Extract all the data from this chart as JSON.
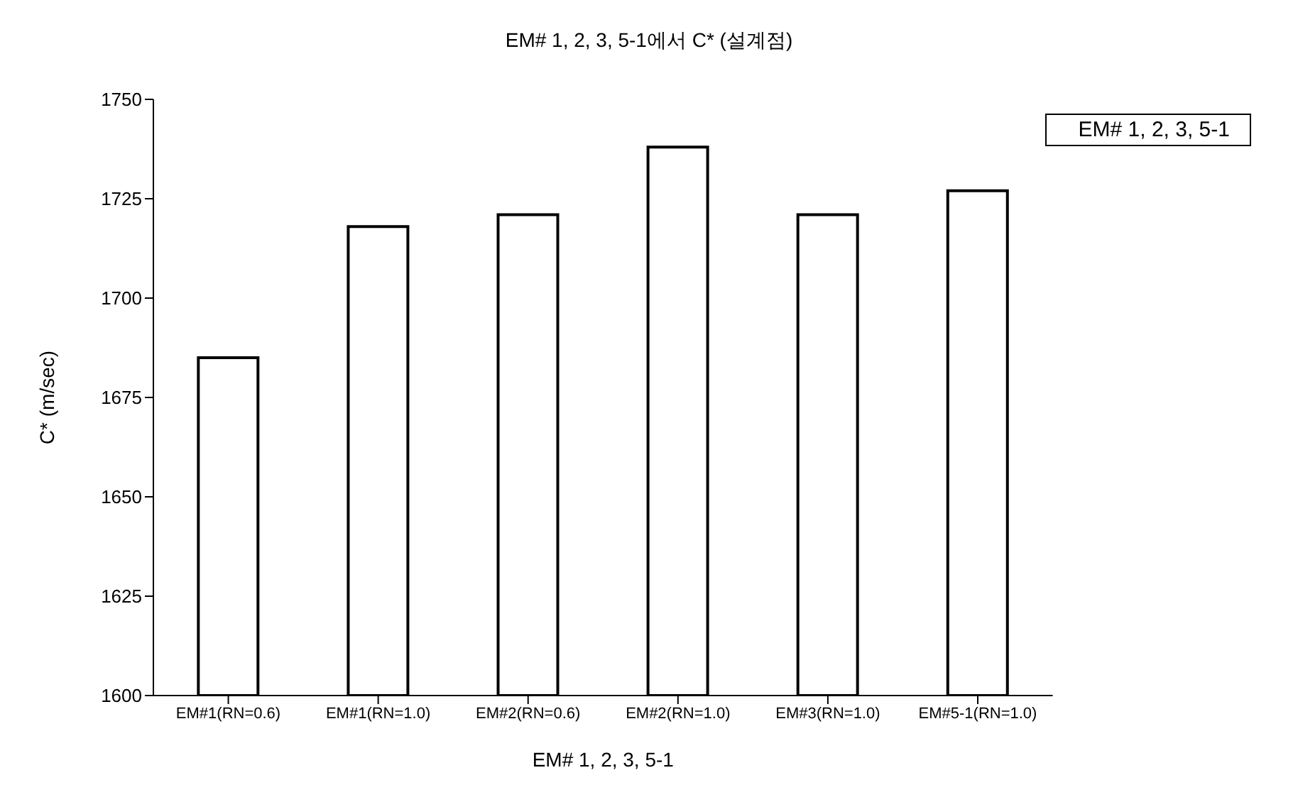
{
  "chart_data": {
    "type": "bar",
    "title": "EM# 1, 2, 3, 5-1에서 C* (설계점)",
    "xlabel": "EM# 1, 2, 3, 5-1",
    "ylabel": "C* (m/sec)",
    "categories": [
      "EM#1(RN=0.6)",
      "EM#1(RN=1.0)",
      "EM#2(RN=0.6)",
      "EM#2(RN=1.0)",
      "EM#3(RN=1.0)",
      "EM#5-1(RN=1.0)"
    ],
    "series": [
      {
        "name": "EM# 1, 2, 3, 5-1",
        "color": "#ffffff",
        "values": [
          1685,
          1718,
          1721,
          1738,
          1721,
          1727
        ]
      }
    ],
    "ylim": [
      1600,
      1750
    ],
    "yticks": [
      1600,
      1625,
      1650,
      1675,
      1700,
      1725,
      1750
    ],
    "grid": false,
    "legend": "top right"
  }
}
